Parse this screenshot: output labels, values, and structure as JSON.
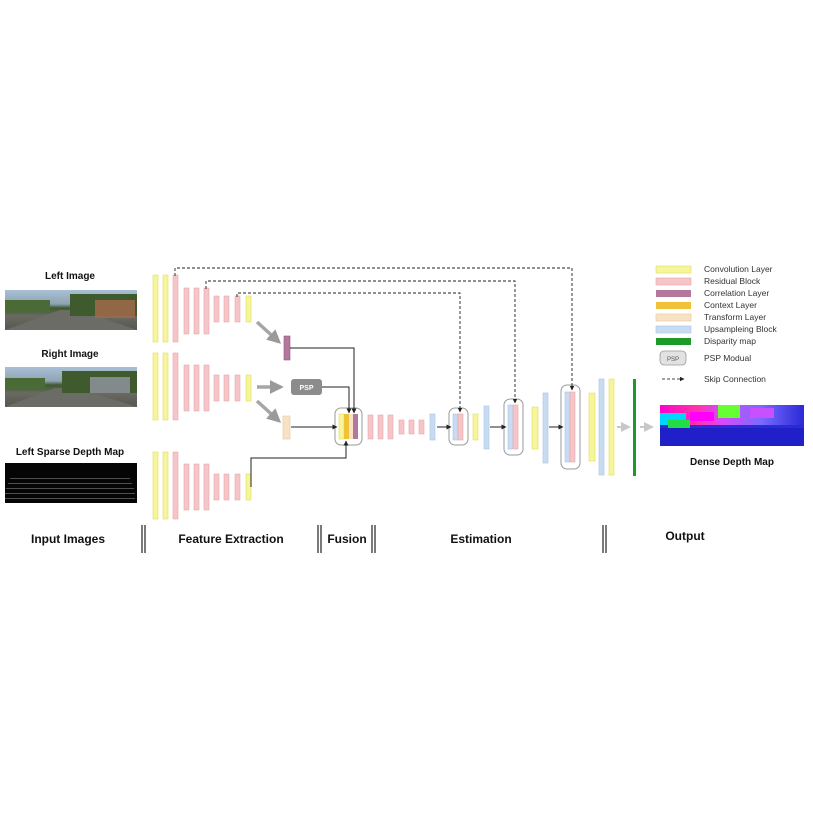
{
  "inputs": {
    "left_image": "Left Image",
    "right_image": "Right Image",
    "left_sparse_depth": "Left Sparse Depth Map"
  },
  "psp_label": "PSP",
  "output_label": "Dense Depth Map",
  "stages": {
    "input_images": "Input Images",
    "feature_extraction": "Feature Extraction",
    "fusion": "Fusion",
    "estimation": "Estimation",
    "output": "Output"
  },
  "legend": {
    "convolution": "Convolution Layer",
    "residual": "Residual Block",
    "correlation": "Correlation Layer",
    "context": "Context Layer",
    "transform": "Transform Layer",
    "upsampling": "Upsampleing Block",
    "disparity": "Disparity map",
    "psp": "PSP Modual",
    "psp_box": "PSP",
    "skip": "Skip Connection"
  },
  "colors": {
    "convolution": "#f6f59a",
    "residual": "#f5c5c8",
    "correlation": "#b4789c",
    "context": "#f0c23a",
    "transform": "#f8e2c4",
    "upsampling": "#c9dbf1",
    "disparity": "#1e9a2a",
    "psp": "#8c8c8c"
  }
}
